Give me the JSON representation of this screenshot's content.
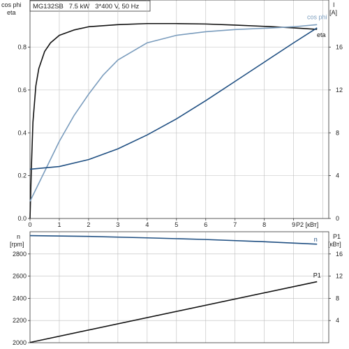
{
  "header": {
    "motor_label": "MG132SB   7.5 kW   3*400 V, 50 Hz"
  },
  "top_panel": {
    "left_axis_title_1": "cos phi",
    "left_axis_title_2": "eta",
    "right_axis_title_1": "I",
    "right_axis_title_2": "[A]",
    "x_axis_label": "P2 [кВт]"
  },
  "bottom_panel": {
    "left_axis_title_1": "n",
    "left_axis_title_2": "[rpm]",
    "right_axis_title_1": "P1",
    "right_axis_title_2": "[кВт]"
  },
  "colors": {
    "eta": "#111111",
    "cos_phi": "#7a9cbd",
    "current": "#1f4f82",
    "speed": "#1f4f82",
    "p1": "#111111",
    "grid": "#bdbdbd"
  },
  "chart_data": [
    {
      "type": "line",
      "panel": "top",
      "x_label": "P2 [кВт]",
      "x_ticks": [
        0,
        1,
        2,
        3,
        4,
        5,
        6,
        7,
        8,
        9
      ],
      "xlim": [
        0,
        10.2
      ],
      "y_left": {
        "label": [
          "cos phi",
          "eta"
        ],
        "lim": [
          0,
          1.02
        ],
        "ticks": [
          0.0,
          0.2,
          0.4,
          0.6,
          0.8
        ]
      },
      "y_right": {
        "label": [
          "I",
          "[A]"
        ],
        "lim": [
          0,
          20.4
        ],
        "ticks": [
          0,
          4,
          8,
          12,
          16
        ]
      },
      "grid": true,
      "series": [
        {
          "name": "eta",
          "axis": "left",
          "color": "#111111",
          "x": [
            0,
            0.05,
            0.1,
            0.2,
            0.3,
            0.5,
            0.7,
            1.0,
            1.5,
            2,
            3,
            4,
            5,
            6,
            7,
            8,
            9,
            9.8
          ],
          "y": [
            0,
            0.25,
            0.45,
            0.62,
            0.7,
            0.78,
            0.82,
            0.855,
            0.88,
            0.895,
            0.905,
            0.91,
            0.91,
            0.908,
            0.903,
            0.897,
            0.89,
            0.883
          ]
        },
        {
          "name": "cos phi",
          "axis": "left",
          "color": "#7a9cbd",
          "x": [
            0,
            0.5,
            1,
            1.5,
            2,
            2.5,
            3,
            4,
            5,
            6,
            7,
            8,
            9,
            9.8
          ],
          "y": [
            0.08,
            0.22,
            0.36,
            0.48,
            0.58,
            0.67,
            0.74,
            0.82,
            0.855,
            0.872,
            0.882,
            0.888,
            0.895,
            0.905
          ]
        },
        {
          "name": "I",
          "axis": "right",
          "color": "#1f4f82",
          "x": [
            0,
            1,
            2,
            3,
            4,
            5,
            6,
            7,
            8,
            9,
            9.8
          ],
          "y": [
            4.6,
            4.85,
            5.5,
            6.5,
            7.8,
            9.3,
            11.0,
            12.8,
            14.6,
            16.4,
            17.8
          ]
        }
      ]
    },
    {
      "type": "line",
      "panel": "bottom",
      "x_label": "P2 [кВт]",
      "xlim": [
        0,
        10.2
      ],
      "y_left": {
        "label": [
          "n",
          "[rpm]"
        ],
        "lim": [
          2000,
          3000
        ],
        "ticks": [
          2000,
          2200,
          2400,
          2600,
          2800
        ]
      },
      "y_right": {
        "label": [
          "P1",
          "[кВт]"
        ],
        "lim": [
          0,
          20
        ],
        "ticks": [
          4,
          8,
          12,
          16
        ]
      },
      "grid": true,
      "series": [
        {
          "name": "n",
          "axis": "left",
          "color": "#1f4f82",
          "x": [
            0,
            2,
            4,
            6,
            8,
            9.8
          ],
          "y": [
            2965,
            2958,
            2945,
            2930,
            2910,
            2888
          ]
        },
        {
          "name": "P1",
          "axis": "right",
          "color": "#111111",
          "x": [
            0,
            9.8
          ],
          "y": [
            0.05,
            11.0
          ]
        }
      ]
    }
  ]
}
